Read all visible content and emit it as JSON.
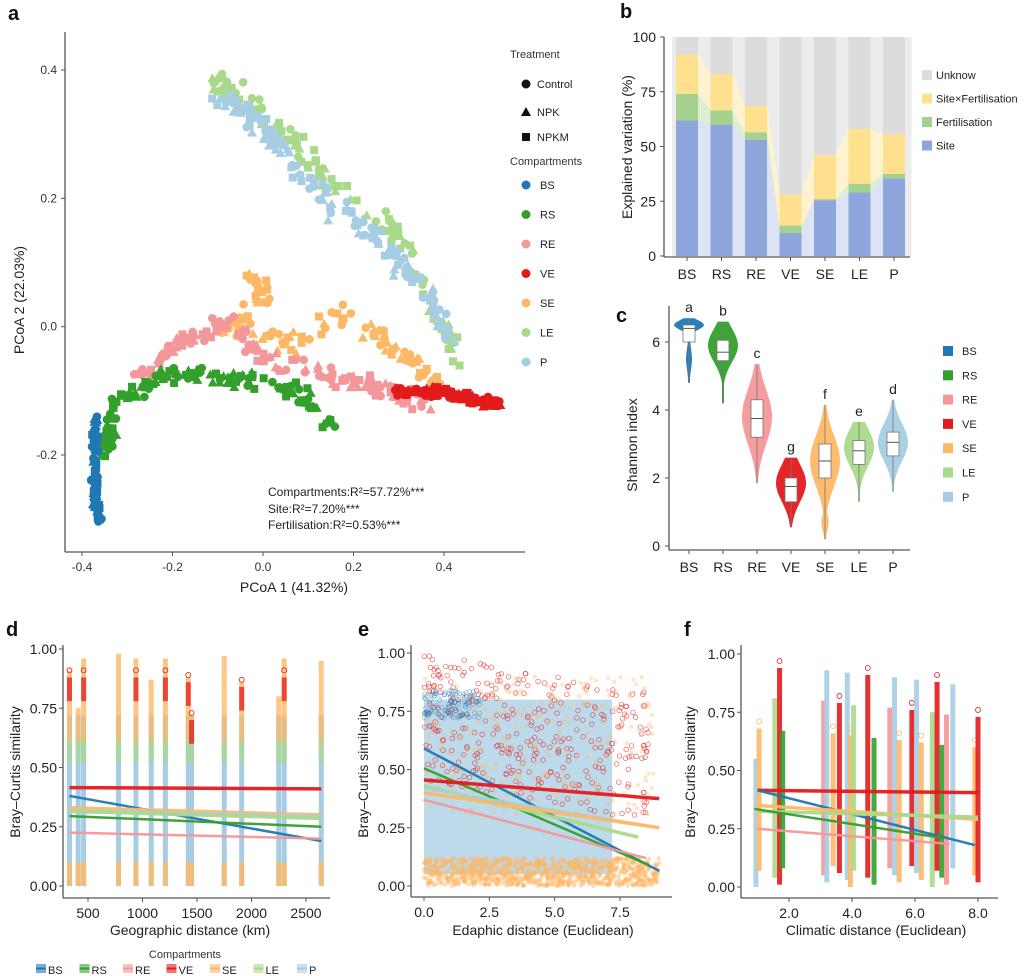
{
  "colors": {
    "BS": "#1f78b4",
    "RS": "#33a02c",
    "RE": "#f4979a",
    "VE": "#e31a1c",
    "SE": "#fdb866",
    "LE": "#a9d98a",
    "P": "#a6cde3",
    "site": "#8ea6dc",
    "fertilisation": "#a5d18f",
    "site_x_fertilisation": "#ffe08f",
    "unknown": "#dcdcdc"
  },
  "chart_data": [
    {
      "id": "a",
      "panel_label": "a",
      "type": "scatter",
      "xlabel": "PCoA 1 (41.32%)",
      "ylabel": "PCoA 2 (22.03%)",
      "xlim": [
        -0.42,
        0.56
      ],
      "ylim": [
        -0.335,
        0.455
      ],
      "xticks": [
        -0.4,
        -0.2,
        0.0,
        0.2,
        0.4
      ],
      "xtick_labels": [
        "-0.4",
        "-0.2",
        "0.0",
        "0.2",
        "0.4"
      ],
      "yticks": [
        -0.2,
        0.0,
        0.2,
        0.4
      ],
      "ytick_labels": [
        "-0.2",
        "0.0",
        "0.2",
        "0.4"
      ],
      "grid": false,
      "legend": {
        "placement": "right",
        "treatment_title": "Treatment",
        "treatments": [
          {
            "name": "Control",
            "shape": "circle"
          },
          {
            "name": "NPK",
            "shape": "triangle"
          },
          {
            "name": "NPKM",
            "shape": "square"
          }
        ],
        "compartments_title": "Compartments",
        "compartments": [
          "BS",
          "RS",
          "RE",
          "VE",
          "SE",
          "LE",
          "P"
        ]
      },
      "annotations": [
        "Compartments:R²=57.72%***",
        "Site:R²=7.20%***",
        "Fertilisation:R²=0.53%***"
      ],
      "clusters": [
        {
          "name": "BS",
          "n": 70,
          "path": [
            [
              -0.37,
              -0.14
            ],
            [
              -0.37,
              -0.2
            ],
            [
              -0.375,
              -0.25
            ],
            [
              -0.36,
              -0.3
            ]
          ],
          "spread": [
            0.012,
            0.02
          ]
        },
        {
          "name": "RS",
          "n": 140,
          "path": [
            [
              -0.35,
              -0.2
            ],
            [
              -0.33,
              -0.12
            ],
            [
              -0.26,
              -0.09
            ],
            [
              -0.17,
              -0.07
            ],
            [
              -0.07,
              -0.08
            ],
            [
              0.05,
              -0.09
            ],
            [
              0.15,
              -0.15
            ]
          ],
          "spread": [
            0.025,
            0.02
          ]
        },
        {
          "name": "RE",
          "n": 150,
          "path": [
            [
              -0.3,
              -0.1
            ],
            [
              -0.22,
              -0.04
            ],
            [
              -0.15,
              -0.01
            ],
            [
              -0.08,
              0.01
            ],
            [
              0.0,
              -0.05
            ],
            [
              0.15,
              -0.08
            ],
            [
              0.28,
              -0.1
            ],
            [
              0.36,
              -0.12
            ]
          ],
          "spread": [
            0.03,
            0.025
          ]
        },
        {
          "name": "VE",
          "n": 110,
          "path": [
            [
              0.3,
              -0.1
            ],
            [
              0.38,
              -0.1
            ],
            [
              0.45,
              -0.11
            ],
            [
              0.52,
              -0.12
            ]
          ],
          "spread": [
            0.025,
            0.012
          ]
        },
        {
          "name": "SE",
          "n": 120,
          "path": [
            [
              -0.03,
              0.09
            ],
            [
              0.0,
              0.05
            ],
            [
              -0.08,
              0.0
            ],
            [
              0.05,
              -0.03
            ],
            [
              0.18,
              0.02
            ],
            [
              0.3,
              -0.04
            ],
            [
              0.4,
              -0.1
            ]
          ],
          "spread": [
            0.03,
            0.025
          ]
        },
        {
          "name": "LE",
          "n": 130,
          "path": [
            [
              -0.1,
              0.38
            ],
            [
              -0.05,
              0.36
            ],
            [
              0.05,
              0.3
            ],
            [
              0.15,
              0.22
            ],
            [
              0.28,
              0.16
            ],
            [
              0.38,
              0.03
            ],
            [
              0.43,
              -0.05
            ]
          ],
          "spread": [
            0.03,
            0.025
          ]
        },
        {
          "name": "P",
          "n": 140,
          "path": [
            [
              -0.09,
              0.36
            ],
            [
              -0.03,
              0.33
            ],
            [
              0.05,
              0.27
            ],
            [
              0.15,
              0.2
            ],
            [
              0.25,
              0.13
            ],
            [
              0.35,
              0.07
            ],
            [
              0.42,
              -0.03
            ]
          ],
          "spread": [
            0.035,
            0.03
          ]
        }
      ]
    },
    {
      "id": "b",
      "panel_label": "b",
      "type": "bar",
      "stacked": true,
      "categories": [
        "BS",
        "RS",
        "RE",
        "VE",
        "SE",
        "LE",
        "P"
      ],
      "ylabel": "Explained variation (%)",
      "ylim": [
        0,
        100
      ],
      "yticks": [
        0,
        25,
        50,
        75,
        100
      ],
      "legend_placement": "right",
      "series": [
        {
          "name": "Site",
          "key": "site",
          "values": [
            62,
            60,
            53,
            10.5,
            25.5,
            29,
            35.5
          ]
        },
        {
          "name": "Fertilisation",
          "key": "fertilisation",
          "values": [
            12,
            6.5,
            3.5,
            3.5,
            0.5,
            4,
            2
          ]
        },
        {
          "name": "Site×Fertilisation",
          "key": "site_x_fertilisation",
          "values": [
            18,
            16.5,
            12,
            14,
            20,
            25,
            18
          ]
        },
        {
          "name": "Unknow",
          "key": "unknown",
          "values": [
            8,
            17,
            31.5,
            72,
            54,
            42,
            44.5
          ]
        }
      ],
      "legend_order": [
        "Unknow",
        "Site×Fertilisation",
        "Fertilisation",
        "Site"
      ]
    },
    {
      "id": "c",
      "panel_label": "c",
      "type": "violin",
      "categories": [
        "BS",
        "RS",
        "RE",
        "VE",
        "SE",
        "LE",
        "P"
      ],
      "ylabel": "Shannon index",
      "ylim": [
        0,
        7
      ],
      "yticks": [
        0,
        2,
        4,
        6
      ],
      "legend_placement": "right",
      "groups": [
        {
          "name": "BS",
          "min": 4.8,
          "max": 6.7,
          "q1": 6.0,
          "median": 6.4,
          "q3": 6.5,
          "letter": "a",
          "mode": 6.55
        },
        {
          "name": "RS",
          "min": 4.2,
          "max": 6.6,
          "q1": 5.45,
          "median": 5.7,
          "q3": 6.05,
          "letter": "b",
          "mode": 5.9
        },
        {
          "name": "RE",
          "min": 1.85,
          "max": 5.35,
          "q1": 3.2,
          "median": 3.75,
          "q3": 4.3,
          "letter": "c",
          "mode": 3.8
        },
        {
          "name": "VE",
          "min": 0.55,
          "max": 2.6,
          "q1": 1.3,
          "median": 1.75,
          "q3": 2.0,
          "letter": "g",
          "mode": 1.85
        },
        {
          "name": "SE",
          "min": 0.2,
          "max": 4.15,
          "q1": 2.0,
          "median": 2.5,
          "q3": 3.0,
          "letter": "f",
          "mode": 2.5
        },
        {
          "name": "LE",
          "min": 1.3,
          "max": 3.65,
          "q1": 2.4,
          "median": 2.8,
          "q3": 3.1,
          "letter": "e",
          "mode": 2.9
        },
        {
          "name": "P",
          "min": 1.6,
          "max": 4.3,
          "q1": 2.65,
          "median": 3.05,
          "q3": 3.35,
          "letter": "d",
          "mode": 3.05
        }
      ]
    },
    {
      "id": "d",
      "panel_label": "d",
      "type": "scatter",
      "xlabel": "Geographic distance (km)",
      "ylabel": "Bray–Curtis similarity",
      "xlim": [
        200,
        2750
      ],
      "ylim": [
        0,
        1.0
      ],
      "xticks": [
        500,
        1000,
        1500,
        2000,
        2500
      ],
      "xtick_labels": [
        "500",
        "1000",
        "1500",
        "2000",
        "2500"
      ],
      "yticks": [
        0,
        0.25,
        0.5,
        0.75,
        1.0
      ],
      "ytick_labels": [
        "0.00",
        "0.25",
        "0.50",
        "0.75",
        "1.00"
      ],
      "legend": {
        "title": "Compartments",
        "placement": "bottom",
        "entries": [
          "BS",
          "RS",
          "RE",
          "VE",
          "SE",
          "LE",
          "P"
        ]
      },
      "stripes_x": [
        330,
        410,
        460,
        780,
        940,
        1080,
        1210,
        1420,
        1450,
        1750,
        1910,
        2250,
        2300,
        2640
      ],
      "stripe_top": [
        0.91,
        0.75,
        0.96,
        0.98,
        0.96,
        0.87,
        0.96,
        0.88,
        0.72,
        0.97,
        0.86,
        0.8,
        0.96,
        0.95
      ],
      "fit_lines": [
        {
          "name": "VE",
          "x": [
            330,
            2640
          ],
          "y": [
            0.415,
            0.41
          ]
        },
        {
          "name": "BS",
          "x": [
            330,
            2640
          ],
          "y": [
            0.38,
            0.19
          ]
        },
        {
          "name": "SE",
          "x": [
            330,
            2640
          ],
          "y": [
            0.33,
            0.3
          ]
        },
        {
          "name": "P",
          "x": [
            330,
            2640
          ],
          "y": [
            0.32,
            0.295
          ]
        },
        {
          "name": "LE",
          "x": [
            330,
            2640
          ],
          "y": [
            0.315,
            0.285
          ]
        },
        {
          "name": "RS",
          "x": [
            330,
            2640
          ],
          "y": [
            0.295,
            0.25
          ]
        },
        {
          "name": "RE",
          "x": [
            330,
            2640
          ],
          "y": [
            0.225,
            0.2
          ]
        }
      ]
    },
    {
      "id": "e",
      "panel_label": "e",
      "type": "scatter",
      "xlabel": "Edaphic distance (Euclidean)",
      "ylabel": "Bray–Curtis similarity",
      "xlim": [
        -0.5,
        9.5
      ],
      "ylim": [
        0,
        1.0
      ],
      "xticks": [
        0,
        2.5,
        5,
        7.5
      ],
      "xtick_labels": [
        "0.0",
        "2.5",
        "5.0",
        "7.5"
      ],
      "yticks": [
        0,
        0.25,
        0.5,
        0.75,
        1.0
      ],
      "ytick_labels": [
        "0.00",
        "0.25",
        "0.50",
        "0.75",
        "1.00"
      ],
      "fit_lines": [
        {
          "name": "BS",
          "x": [
            0,
            9.0
          ],
          "y": [
            0.59,
            0.065
          ]
        },
        {
          "name": "RS",
          "x": [
            0,
            8.6
          ],
          "y": [
            0.505,
            0.09
          ]
        },
        {
          "name": "VE",
          "x": [
            0,
            9.0
          ],
          "y": [
            0.455,
            0.375
          ]
        },
        {
          "name": "LE",
          "x": [
            0,
            8.2
          ],
          "y": [
            0.43,
            0.21
          ]
        },
        {
          "name": "P",
          "x": [
            0,
            8.5
          ],
          "y": [
            0.42,
            0.26
          ]
        },
        {
          "name": "SE",
          "x": [
            0,
            9.0
          ],
          "y": [
            0.4,
            0.25
          ]
        },
        {
          "name": "RE",
          "x": [
            0,
            8.5
          ],
          "y": [
            0.37,
            0.12
          ]
        }
      ]
    },
    {
      "id": "f",
      "panel_label": "f",
      "type": "scatter",
      "xlabel": "Climatic distance (Euclidean)",
      "ylabel": "Bray–Curtis similarity",
      "xlim": [
        0.4,
        8.3
      ],
      "ylim": [
        0,
        1.0
      ],
      "xticks": [
        2,
        4,
        6,
        8
      ],
      "xtick_labels": [
        "2.0",
        "4.0",
        "6.0",
        "8.0"
      ],
      "yticks": [
        0,
        0.25,
        0.5,
        0.75,
        1.0
      ],
      "ytick_labels": [
        "0.00",
        "0.25",
        "0.50",
        "0.75",
        "1.00"
      ],
      "stripes_x": [
        0.95,
        1.05,
        1.55,
        1.7,
        1.8,
        3.1,
        3.2,
        3.4,
        3.6,
        3.85,
        3.95,
        4.05,
        4.5,
        4.7,
        5.2,
        5.35,
        5.5,
        5.9,
        6.05,
        6.2,
        6.55,
        6.7,
        6.85,
        7.0,
        7.2,
        7.9,
        8.0
      ],
      "fit_lines": [
        {
          "name": "VE",
          "x": [
            1.0,
            8.0
          ],
          "y": [
            0.415,
            0.405
          ]
        },
        {
          "name": "BS",
          "x": [
            1.0,
            7.9
          ],
          "y": [
            0.415,
            0.18
          ]
        },
        {
          "name": "SE",
          "x": [
            1.0,
            8.0
          ],
          "y": [
            0.35,
            0.29
          ]
        },
        {
          "name": "LE",
          "x": [
            1.0,
            8.0
          ],
          "y": [
            0.325,
            0.3
          ]
        },
        {
          "name": "RS",
          "x": [
            0.9,
            6.9
          ],
          "y": [
            0.335,
            0.21
          ]
        },
        {
          "name": "RE",
          "x": [
            1.0,
            7.1
          ],
          "y": [
            0.25,
            0.185
          ]
        }
      ]
    }
  ]
}
